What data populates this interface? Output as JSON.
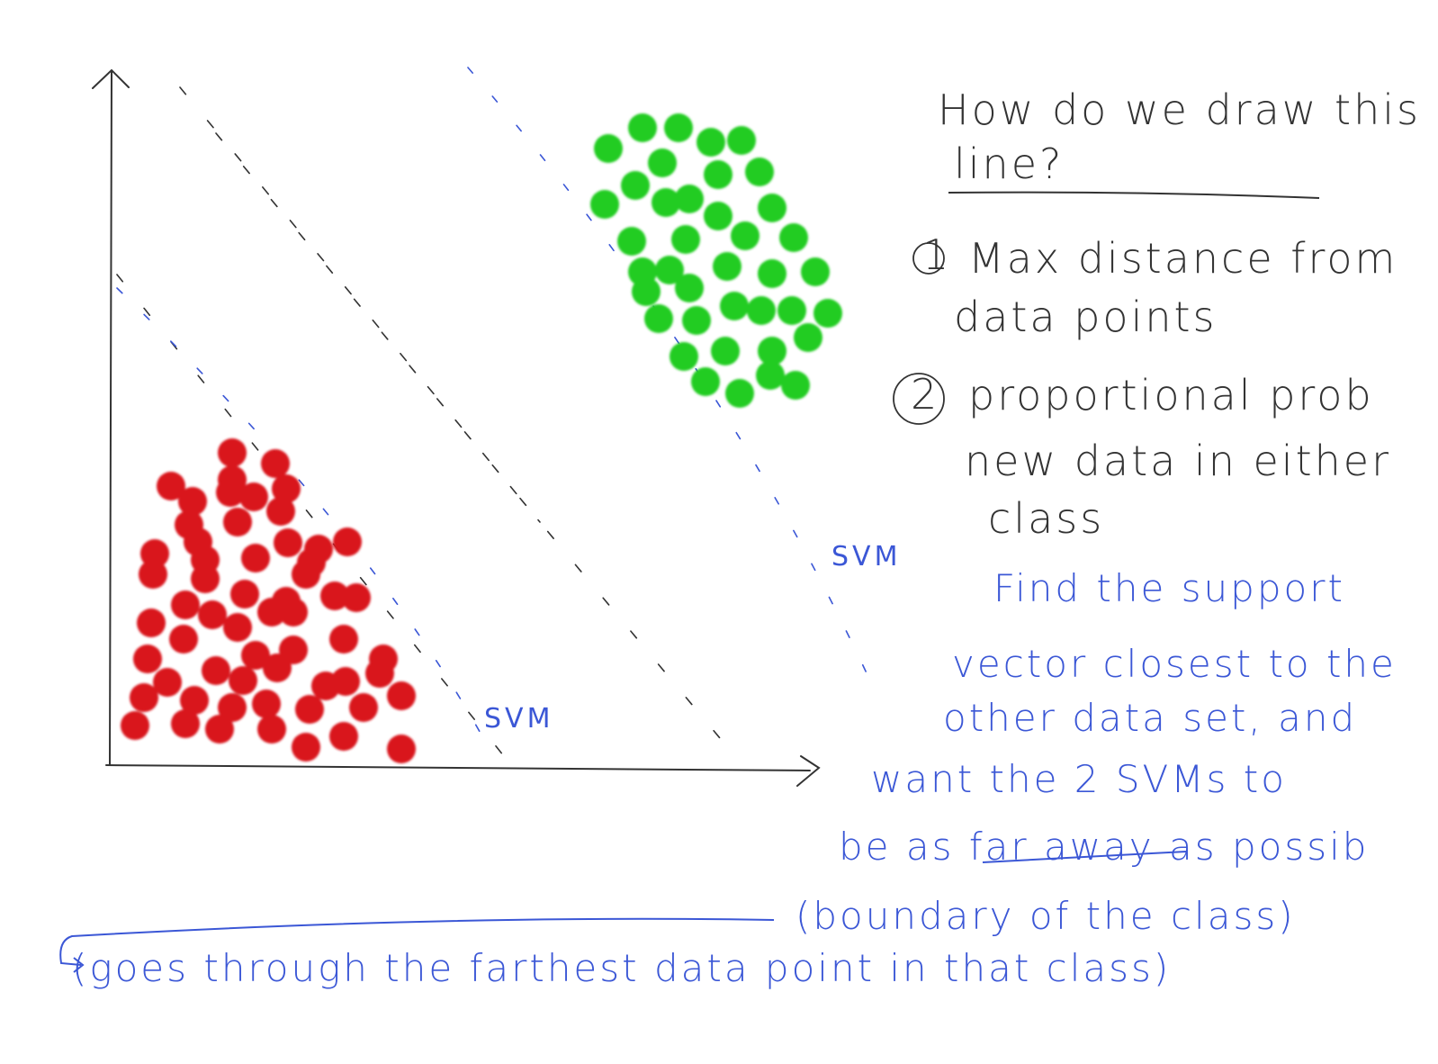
{
  "diagram": {
    "heading_line1": "How do we draw this",
    "heading_line2": "line?",
    "point1_marker": "1",
    "point1_line1": "Max distance from",
    "point1_line2": "data points",
    "point2_marker": "2",
    "point2_line1": "proportional prob",
    "point2_line2": "new data in either",
    "point2_line3": "class",
    "svm_label_right": "SVM",
    "svm_label_left": "SVM",
    "note_line1": "Find the support",
    "note_line2": "vector closest to the",
    "note_line3": "other data set, and",
    "note_line4": "want the 2 SVMs to",
    "note_line5": "be as far away as possib",
    "note_line6": "(boundary of the class)",
    "note_line7": "(goes through the farthest data point in that class)",
    "colors": {
      "class_red": "#d9141e",
      "class_green": "#22cc22",
      "annotation_blue": "#3b57d6",
      "ink_black": "#333333"
    }
  }
}
